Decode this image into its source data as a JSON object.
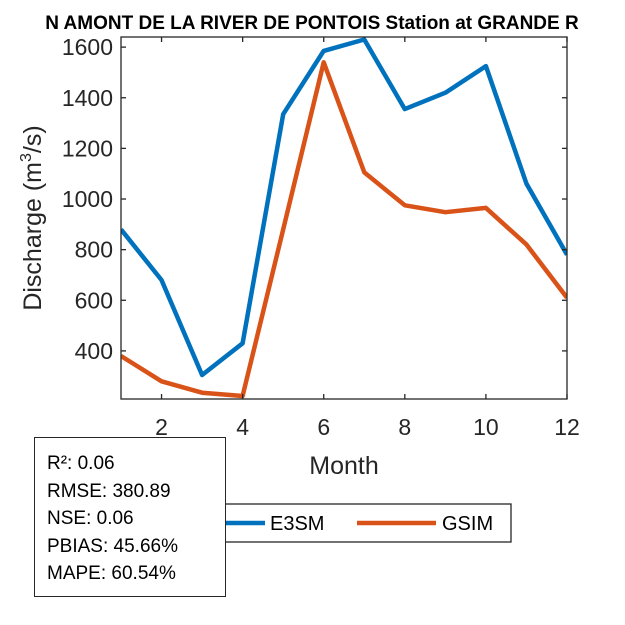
{
  "chart_data": {
    "type": "line",
    "title": "N AMONT DE LA RIVER DE PONTOIS  Station at  GRANDE R",
    "xlabel": "Month",
    "ylabel_prefix": "Discharge (m",
    "ylabel_sup": "3",
    "ylabel_suffix": "/s)",
    "xlim": [
      1,
      12
    ],
    "ylim": [
      210,
      1640
    ],
    "xticks": [
      2,
      4,
      6,
      8,
      10,
      12
    ],
    "yticks": [
      400,
      600,
      800,
      1000,
      1200,
      1400,
      1600
    ],
    "x": [
      1,
      2,
      3,
      4,
      5,
      6,
      7,
      8,
      9,
      10,
      11,
      12
    ],
    "series": [
      {
        "name": "E3SM",
        "color": "#0072BD",
        "values": [
          880,
          680,
          305,
          430,
          1335,
          1585,
          1630,
          1355,
          1420,
          1525,
          1060,
          780
        ]
      },
      {
        "name": "GSIM",
        "color": "#D95319",
        "values": [
          380,
          280,
          235,
          222,
          880,
          1540,
          1105,
          975,
          948,
          965,
          820,
          610
        ]
      }
    ],
    "grid": false,
    "legend_position": "bottom-center"
  },
  "stats": {
    "r2": "R²: 0.06",
    "rmse": "RMSE: 380.89",
    "nse": "NSE: 0.06",
    "pbias": "PBIAS: 45.66%",
    "mape": "MAPE: 60.54%"
  }
}
